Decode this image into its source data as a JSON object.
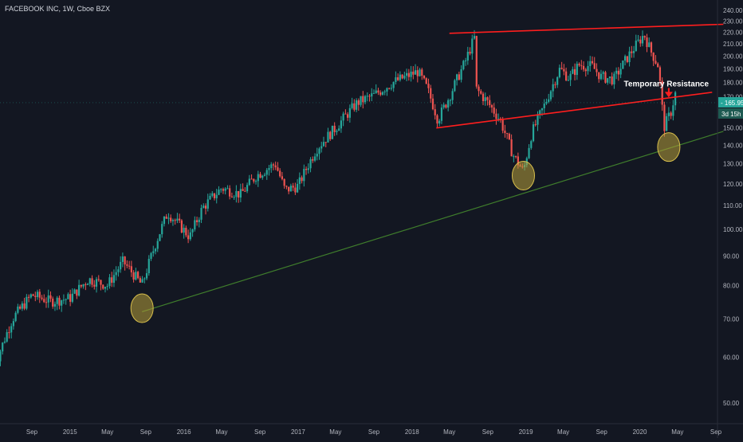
{
  "header": {
    "title": "FACEBOOK INC, 1W, Cboe BZX"
  },
  "colors": {
    "background": "#131722",
    "up_candle": "#26a69a",
    "down_candle": "#ef5350",
    "trendline_red": "#ff1e1e",
    "trendline_green": "#3f7d2c",
    "circle_fill": "#b8a13a",
    "price_badge": "#26a69a",
    "axis_text": "#b2b5be"
  },
  "chart_data": {
    "type": "candlestick",
    "title": "FACEBOOK INC, 1W, Cboe BZX",
    "y_scale": "log",
    "ylim": [
      45,
      245
    ],
    "y_ticks": [
      50,
      60,
      70,
      80,
      90,
      100,
      110,
      120,
      130,
      140,
      150,
      160,
      170,
      180,
      190,
      200,
      210,
      220,
      230,
      240
    ],
    "y_tick_labels": [
      "50.00",
      "60.00",
      "70.00",
      "80.00",
      "90.00",
      "100.00",
      "110.00",
      "120.00",
      "130.00",
      "140.00",
      "150.00",
      "160.00",
      "170.00",
      "180.00",
      "190.00",
      "200.00",
      "210.00",
      "220.00",
      "230.00",
      "240.00"
    ],
    "x_tick_labels": [
      "Sep",
      "2015",
      "May",
      "Sep",
      "2016",
      "May",
      "Sep",
      "2017",
      "May",
      "Sep",
      "2018",
      "May",
      "Sep",
      "2019",
      "May",
      "Sep",
      "2020",
      "May",
      "Sep"
    ],
    "x_tick_dates": [
      "2014-09-01",
      "2015-01-01",
      "2015-05-01",
      "2015-09-01",
      "2016-01-01",
      "2016-05-01",
      "2016-09-01",
      "2017-01-01",
      "2017-05-01",
      "2017-09-01",
      "2018-01-01",
      "2018-05-01",
      "2018-09-01",
      "2019-01-01",
      "2019-05-01",
      "2019-09-01",
      "2020-01-01",
      "2020-05-01",
      "2020-09-01"
    ],
    "price_anchors": [
      [
        "2014-05-01",
        57
      ],
      [
        "2014-07-01",
        70
      ],
      [
        "2014-09-01",
        77
      ],
      [
        "2014-11-01",
        75
      ],
      [
        "2015-01-01",
        76
      ],
      [
        "2015-03-01",
        82
      ],
      [
        "2015-05-01",
        80
      ],
      [
        "2015-06-20",
        88
      ],
      [
        "2015-08-20",
        80
      ],
      [
        "2015-10-01",
        94
      ],
      [
        "2015-11-10",
        107
      ],
      [
        "2016-01-20",
        97
      ],
      [
        "2016-03-01",
        109
      ],
      [
        "2016-05-01",
        118
      ],
      [
        "2016-07-01",
        115
      ],
      [
        "2016-08-20",
        124
      ],
      [
        "2016-10-20",
        130
      ],
      [
        "2016-11-20",
        117
      ],
      [
        "2017-01-01",
        119
      ],
      [
        "2017-03-01",
        138
      ],
      [
        "2017-05-01",
        150
      ],
      [
        "2017-07-10",
        166
      ],
      [
        "2017-09-01",
        171
      ],
      [
        "2017-11-01",
        180
      ],
      [
        "2018-01-20",
        188
      ],
      [
        "2018-02-20",
        175
      ],
      [
        "2018-03-25",
        155
      ],
      [
        "2018-05-01",
        170
      ],
      [
        "2018-06-20",
        195
      ],
      [
        "2018-07-20",
        215
      ],
      [
        "2018-07-27",
        175
      ],
      [
        "2018-09-01",
        166
      ],
      [
        "2018-10-10",
        155
      ],
      [
        "2018-11-20",
        135
      ],
      [
        "2018-12-24",
        126
      ],
      [
        "2019-01-20",
        147
      ],
      [
        "2019-03-01",
        164
      ],
      [
        "2019-04-20",
        190
      ],
      [
        "2019-05-20",
        183
      ],
      [
        "2019-06-20",
        193
      ],
      [
        "2019-08-01",
        192
      ],
      [
        "2019-08-30",
        184
      ],
      [
        "2019-10-10",
        182
      ],
      [
        "2019-11-20",
        198
      ],
      [
        "2020-01-15",
        218
      ],
      [
        "2020-02-05",
        204
      ],
      [
        "2020-03-01",
        192
      ],
      [
        "2020-03-18",
        150
      ],
      [
        "2020-04-10",
        160
      ],
      [
        "2020-04-24",
        172
      ]
    ],
    "candles_note": "weekly OHLC bars reconstructed from price_anchors",
    "current_price": {
      "label": "165.95",
      "value": 165.95
    },
    "countdown": {
      "label": "3d 15h"
    },
    "annotations": [
      {
        "kind": "text",
        "text": "Temporary Resistance",
        "date": "2020-03-05",
        "price": 177
      },
      {
        "kind": "arrow",
        "date": "2020-04-03",
        "price_from": 176,
        "price_to": 170,
        "color": "red"
      },
      {
        "kind": "trendline",
        "name": "upper channel",
        "color": "red",
        "from": [
          "2018-05-01",
          219
        ],
        "to": [
          "2020-09-25",
          227
        ]
      },
      {
        "kind": "trendline",
        "name": "lower channel",
        "color": "red",
        "from": [
          "2018-03-20",
          150
        ],
        "to": [
          "2020-08-20",
          173
        ]
      },
      {
        "kind": "trendline",
        "name": "long-term support",
        "color": "green",
        "from": [
          "2015-08-20",
          72
        ],
        "to": [
          "2020-09-25",
          148
        ]
      },
      {
        "kind": "circle",
        "date": "2015-08-20",
        "price": 73
      },
      {
        "kind": "circle",
        "date": "2018-12-24",
        "price": 124
      },
      {
        "kind": "circle",
        "date": "2020-04-03",
        "price": 139
      }
    ]
  }
}
